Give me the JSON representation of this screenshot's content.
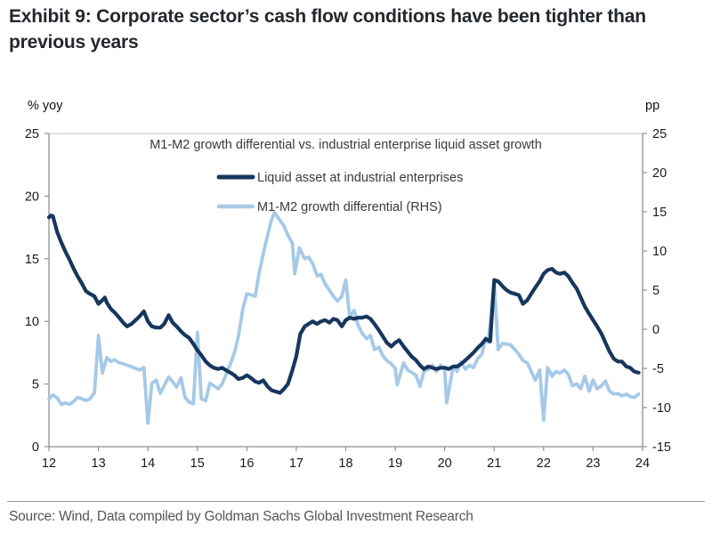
{
  "title": "Exhibit 9: Corporate sector’s cash flow conditions have been tighter than previous years",
  "source": "Source: Wind, Data compiled by Goldman Sachs Global Investment Research",
  "colors": {
    "navy": "#17365d",
    "light_blue": "#a6c9e8",
    "axis": "#8a8f94",
    "plot_top_border": "#cbcfd3",
    "tick_label": "#1b1b1b",
    "inner_text": "#3a3a3a"
  },
  "chart_data": {
    "type": "line",
    "title": "M1-M2 growth differential vs. industrial enterprise liquid asset growth",
    "grid": false,
    "legend_position": "top-center",
    "x_axis": {
      "range": [
        12,
        24
      ],
      "ticks": [
        12,
        13,
        14,
        15,
        16,
        17,
        18,
        19,
        20,
        21,
        22,
        23,
        24
      ]
    },
    "y_left": {
      "label": "% yoy",
      "range": [
        0,
        25
      ],
      "ticks": [
        0,
        5,
        10,
        15,
        20,
        25
      ]
    },
    "y_right": {
      "label": "pp",
      "range": [
        -15,
        25
      ],
      "ticks": [
        -15,
        -10,
        -5,
        0,
        5,
        10,
        15,
        20,
        25
      ]
    },
    "series": [
      {
        "name": "M1-M2 growth differential (RHS)",
        "axis": "right",
        "color": "#a6c9e8",
        "stroke_width": 3.8,
        "points": [
          [
            12.0,
            -8.9
          ],
          [
            12.08,
            -8.4
          ],
          [
            12.17,
            -8.8
          ],
          [
            12.25,
            -9.6
          ],
          [
            12.33,
            -9.4
          ],
          [
            12.42,
            -9.6
          ],
          [
            12.5,
            -9.2
          ],
          [
            12.58,
            -8.7
          ],
          [
            12.67,
            -8.9
          ],
          [
            12.75,
            -9.1
          ],
          [
            12.83,
            -8.9
          ],
          [
            12.92,
            -8.1
          ],
          [
            13.0,
            -0.8
          ],
          [
            13.08,
            -5.6
          ],
          [
            13.17,
            -3.6
          ],
          [
            13.25,
            -4.1
          ],
          [
            13.33,
            -3.9
          ],
          [
            13.42,
            -4.3
          ],
          [
            13.5,
            -4.4
          ],
          [
            13.58,
            -4.6
          ],
          [
            13.67,
            -4.8
          ],
          [
            13.75,
            -5.0
          ],
          [
            13.83,
            -5.2
          ],
          [
            13.92,
            -4.9
          ],
          [
            14.0,
            -12.0
          ],
          [
            14.08,
            -6.9
          ],
          [
            14.17,
            -6.5
          ],
          [
            14.25,
            -8.2
          ],
          [
            14.33,
            -7.2
          ],
          [
            14.42,
            -6.1
          ],
          [
            14.5,
            -6.7
          ],
          [
            14.58,
            -7.4
          ],
          [
            14.67,
            -6.2
          ],
          [
            14.75,
            -8.7
          ],
          [
            14.83,
            -9.3
          ],
          [
            14.92,
            -9.5
          ],
          [
            15.0,
            -0.4
          ],
          [
            15.08,
            -8.9
          ],
          [
            15.17,
            -9.1
          ],
          [
            15.25,
            -6.9
          ],
          [
            15.33,
            -7.2
          ],
          [
            15.42,
            -7.6
          ],
          [
            15.5,
            -7.0
          ],
          [
            15.58,
            -5.8
          ],
          [
            15.67,
            -4.4
          ],
          [
            15.75,
            -3.0
          ],
          [
            15.83,
            -0.9
          ],
          [
            15.92,
            2.6
          ],
          [
            16.0,
            4.5
          ],
          [
            16.08,
            4.4
          ],
          [
            16.17,
            4.2
          ],
          [
            16.25,
            7.2
          ],
          [
            16.33,
            9.6
          ],
          [
            16.42,
            12.0
          ],
          [
            16.5,
            14.0
          ],
          [
            16.56,
            14.9
          ],
          [
            16.67,
            13.9
          ],
          [
            16.75,
            13.2
          ],
          [
            16.83,
            12.0
          ],
          [
            16.92,
            11.0
          ],
          [
            16.97,
            7.1
          ],
          [
            17.06,
            10.4
          ],
          [
            17.17,
            9.0
          ],
          [
            17.25,
            9.2
          ],
          [
            17.33,
            8.4
          ],
          [
            17.42,
            6.8
          ],
          [
            17.5,
            7.0
          ],
          [
            17.58,
            5.8
          ],
          [
            17.67,
            5.0
          ],
          [
            17.75,
            4.2
          ],
          [
            17.83,
            3.6
          ],
          [
            17.92,
            4.2
          ],
          [
            18.0,
            6.3
          ],
          [
            18.08,
            1.6
          ],
          [
            18.17,
            2.4
          ],
          [
            18.25,
            0.5
          ],
          [
            18.33,
            -0.5
          ],
          [
            18.42,
            -1.2
          ],
          [
            18.5,
            -0.8
          ],
          [
            18.58,
            -2.6
          ],
          [
            18.67,
            -2.3
          ],
          [
            18.75,
            -3.4
          ],
          [
            18.83,
            -4.0
          ],
          [
            18.92,
            -4.4
          ],
          [
            19.0,
            -5.0
          ],
          [
            19.04,
            -7.1
          ],
          [
            19.17,
            -4.3
          ],
          [
            19.25,
            -5.2
          ],
          [
            19.33,
            -5.5
          ],
          [
            19.42,
            -5.9
          ],
          [
            19.5,
            -7.3
          ],
          [
            19.58,
            -5.4
          ],
          [
            19.67,
            -5.1
          ],
          [
            19.75,
            -4.6
          ],
          [
            19.83,
            -5.4
          ],
          [
            19.92,
            -4.6
          ],
          [
            20.0,
            -5.2
          ],
          [
            20.04,
            -9.4
          ],
          [
            20.17,
            -4.8
          ],
          [
            20.25,
            -5.4
          ],
          [
            20.33,
            -4.2
          ],
          [
            20.42,
            -5.1
          ],
          [
            20.5,
            -4.6
          ],
          [
            20.58,
            -4.9
          ],
          [
            20.67,
            -3.7
          ],
          [
            20.75,
            -3.2
          ],
          [
            20.83,
            -1.1
          ],
          [
            20.88,
            -1.7
          ],
          [
            21.0,
            6.0
          ],
          [
            21.08,
            -2.6
          ],
          [
            21.17,
            -1.8
          ],
          [
            21.25,
            -1.9
          ],
          [
            21.33,
            -2.0
          ],
          [
            21.42,
            -2.6
          ],
          [
            21.5,
            -3.2
          ],
          [
            21.58,
            -4.0
          ],
          [
            21.67,
            -4.3
          ],
          [
            21.75,
            -5.4
          ],
          [
            21.83,
            -6.5
          ],
          [
            21.92,
            -5.2
          ],
          [
            22.0,
            -11.6
          ],
          [
            22.08,
            -4.9
          ],
          [
            22.17,
            -6.0
          ],
          [
            22.25,
            -5.4
          ],
          [
            22.33,
            -5.6
          ],
          [
            22.42,
            -5.2
          ],
          [
            22.5,
            -5.8
          ],
          [
            22.58,
            -7.2
          ],
          [
            22.67,
            -7.0
          ],
          [
            22.75,
            -7.6
          ],
          [
            22.83,
            -6.0
          ],
          [
            22.92,
            -7.9
          ],
          [
            23.0,
            -6.5
          ],
          [
            23.08,
            -7.6
          ],
          [
            23.17,
            -7.2
          ],
          [
            23.25,
            -6.6
          ],
          [
            23.33,
            -7.9
          ],
          [
            23.42,
            -8.3
          ],
          [
            23.5,
            -8.2
          ],
          [
            23.58,
            -8.5
          ],
          [
            23.67,
            -8.3
          ],
          [
            23.75,
            -8.6
          ],
          [
            23.83,
            -8.7
          ],
          [
            23.92,
            -8.3
          ]
        ]
      },
      {
        "name": "Liquid asset at industrial enterprises",
        "axis": "left",
        "color": "#17365d",
        "stroke_width": 4.2,
        "points": [
          [
            12.0,
            18.3
          ],
          [
            12.04,
            18.45
          ],
          [
            12.08,
            18.4
          ],
          [
            12.17,
            17.1
          ],
          [
            12.25,
            16.3
          ],
          [
            12.33,
            15.6
          ],
          [
            12.42,
            14.9
          ],
          [
            12.5,
            14.2
          ],
          [
            12.58,
            13.6
          ],
          [
            12.67,
            13.0
          ],
          [
            12.75,
            12.4
          ],
          [
            12.83,
            12.2
          ],
          [
            12.92,
            12.0
          ],
          [
            13.0,
            11.4
          ],
          [
            13.08,
            11.7
          ],
          [
            13.13,
            11.9
          ],
          [
            13.17,
            11.5
          ],
          [
            13.25,
            11.0
          ],
          [
            13.33,
            10.7
          ],
          [
            13.42,
            10.3
          ],
          [
            13.5,
            9.9
          ],
          [
            13.58,
            9.6
          ],
          [
            13.67,
            9.8
          ],
          [
            13.75,
            10.1
          ],
          [
            13.83,
            10.4
          ],
          [
            13.92,
            10.8
          ],
          [
            14.0,
            10.0
          ],
          [
            14.08,
            9.6
          ],
          [
            14.17,
            9.5
          ],
          [
            14.25,
            9.5
          ],
          [
            14.33,
            9.8
          ],
          [
            14.42,
            10.5
          ],
          [
            14.5,
            9.9
          ],
          [
            14.58,
            9.6
          ],
          [
            14.67,
            9.2
          ],
          [
            14.75,
            8.9
          ],
          [
            14.83,
            8.7
          ],
          [
            14.92,
            8.2
          ],
          [
            15.0,
            7.7
          ],
          [
            15.08,
            7.3
          ],
          [
            15.17,
            6.8
          ],
          [
            15.25,
            6.5
          ],
          [
            15.33,
            6.3
          ],
          [
            15.42,
            6.2
          ],
          [
            15.5,
            6.3
          ],
          [
            15.58,
            6.1
          ],
          [
            15.67,
            5.9
          ],
          [
            15.75,
            5.7
          ],
          [
            15.83,
            5.4
          ],
          [
            15.92,
            5.5
          ],
          [
            16.0,
            5.7
          ],
          [
            16.08,
            5.5
          ],
          [
            16.17,
            5.2
          ],
          [
            16.25,
            5.1
          ],
          [
            16.33,
            5.3
          ],
          [
            16.42,
            4.8
          ],
          [
            16.5,
            4.5
          ],
          [
            16.58,
            4.4
          ],
          [
            16.67,
            4.3
          ],
          [
            16.75,
            4.6
          ],
          [
            16.83,
            5.0
          ],
          [
            16.92,
            6.1
          ],
          [
            17.0,
            7.2
          ],
          [
            17.08,
            9.0
          ],
          [
            17.17,
            9.6
          ],
          [
            17.25,
            9.8
          ],
          [
            17.33,
            10.0
          ],
          [
            17.42,
            9.8
          ],
          [
            17.5,
            10.0
          ],
          [
            17.58,
            10.1
          ],
          [
            17.67,
            9.9
          ],
          [
            17.75,
            10.2
          ],
          [
            17.83,
            10.1
          ],
          [
            17.92,
            9.6
          ],
          [
            18.0,
            10.1
          ],
          [
            18.08,
            10.3
          ],
          [
            18.17,
            10.2
          ],
          [
            18.25,
            10.3
          ],
          [
            18.33,
            10.3
          ],
          [
            18.42,
            10.4
          ],
          [
            18.5,
            10.2
          ],
          [
            18.58,
            9.8
          ],
          [
            18.67,
            9.3
          ],
          [
            18.75,
            8.8
          ],
          [
            18.83,
            8.3
          ],
          [
            18.92,
            8.0
          ],
          [
            19.0,
            8.3
          ],
          [
            19.08,
            8.5
          ],
          [
            19.17,
            8.0
          ],
          [
            19.25,
            7.6
          ],
          [
            19.33,
            7.2
          ],
          [
            19.42,
            6.9
          ],
          [
            19.5,
            6.5
          ],
          [
            19.58,
            6.2
          ],
          [
            19.67,
            6.4
          ],
          [
            19.75,
            6.3
          ],
          [
            19.83,
            6.2
          ],
          [
            19.92,
            6.3
          ],
          [
            20.0,
            6.3
          ],
          [
            20.08,
            6.2
          ],
          [
            20.17,
            6.4
          ],
          [
            20.25,
            6.4
          ],
          [
            20.33,
            6.6
          ],
          [
            20.42,
            6.9
          ],
          [
            20.5,
            7.2
          ],
          [
            20.58,
            7.5
          ],
          [
            20.67,
            7.9
          ],
          [
            20.75,
            8.2
          ],
          [
            20.83,
            8.6
          ],
          [
            20.92,
            8.4
          ],
          [
            21.0,
            13.3
          ],
          [
            21.08,
            13.2
          ],
          [
            21.17,
            12.8
          ],
          [
            21.25,
            12.5
          ],
          [
            21.33,
            12.3
          ],
          [
            21.42,
            12.2
          ],
          [
            21.5,
            12.1
          ],
          [
            21.58,
            11.4
          ],
          [
            21.67,
            11.7
          ],
          [
            21.75,
            12.2
          ],
          [
            21.83,
            12.7
          ],
          [
            21.92,
            13.2
          ],
          [
            22.0,
            13.8
          ],
          [
            22.08,
            14.1
          ],
          [
            22.17,
            14.2
          ],
          [
            22.25,
            13.9
          ],
          [
            22.33,
            13.8
          ],
          [
            22.42,
            13.9
          ],
          [
            22.5,
            13.6
          ],
          [
            22.58,
            13.1
          ],
          [
            22.67,
            12.6
          ],
          [
            22.75,
            11.9
          ],
          [
            22.83,
            11.2
          ],
          [
            22.92,
            10.6
          ],
          [
            23.0,
            10.1
          ],
          [
            23.08,
            9.6
          ],
          [
            23.17,
            9.0
          ],
          [
            23.25,
            8.3
          ],
          [
            23.33,
            7.6
          ],
          [
            23.42,
            7.0
          ],
          [
            23.5,
            6.8
          ],
          [
            23.58,
            6.8
          ],
          [
            23.67,
            6.4
          ],
          [
            23.75,
            6.3
          ],
          [
            23.83,
            6.0
          ],
          [
            23.92,
            5.9
          ]
        ]
      }
    ],
    "legend": [
      {
        "label": "Liquid asset at industrial enterprises",
        "color": "#17365d"
      },
      {
        "label": "M1-M2 growth differential (RHS)",
        "color": "#a6c9e8"
      }
    ]
  }
}
